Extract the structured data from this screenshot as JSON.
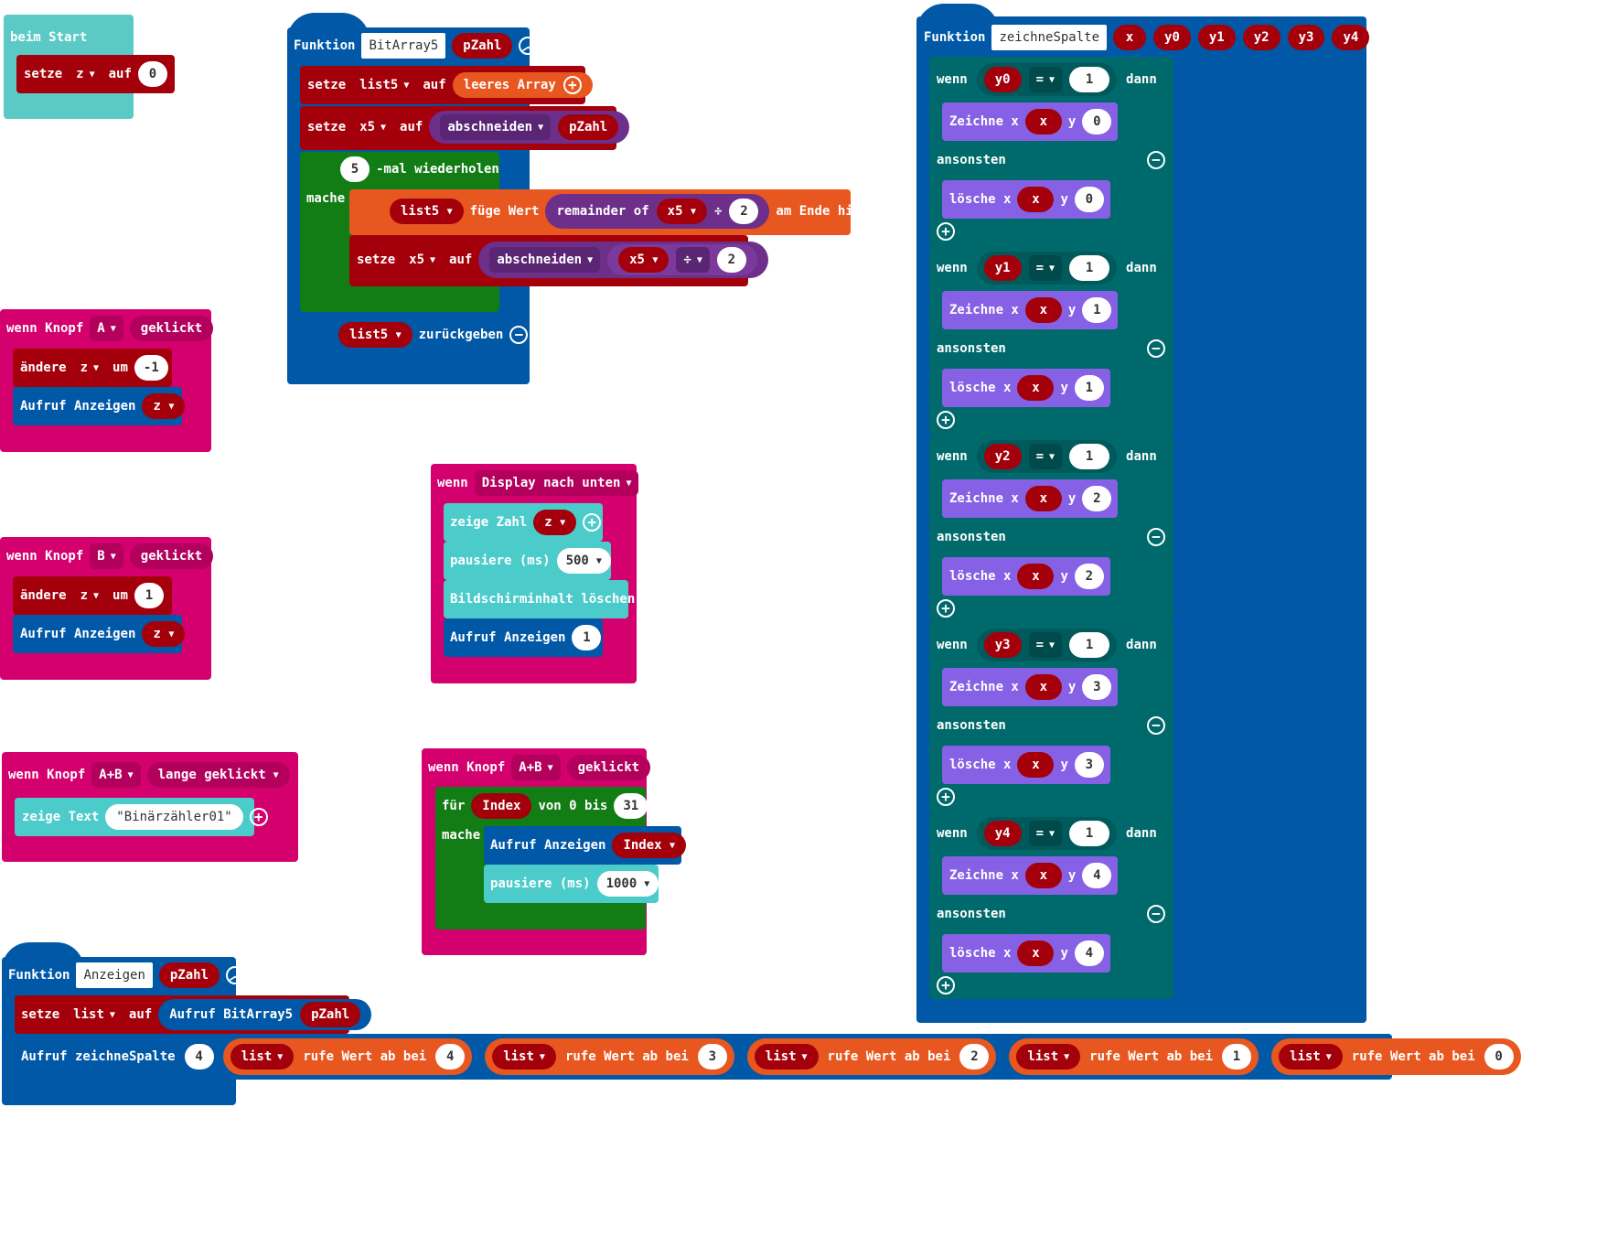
{
  "colors": {
    "event": "#d4006e",
    "start": "#5bc9c5",
    "variables": "#a4000b",
    "functions": "#0058a6",
    "loops": "#127d14",
    "arrays": "#e8571f",
    "math": "#6d2f8a",
    "logic": "#00696b",
    "led": "#8661e5",
    "basic": "#4ccbcb"
  },
  "icons": {
    "plus": "plus-circle-icon",
    "minus": "minus-circle-icon",
    "collapse": "collapse-up-icon",
    "dropdown": "dropdown-caret-icon"
  },
  "glyphs": {
    "plus": "+",
    "minus": "−",
    "up": "︿",
    "caret": "▼"
  },
  "start_block": {
    "label": "beim Start",
    "set": "setze",
    "var": "z",
    "to": "auf",
    "value": "0"
  },
  "button_a": {
    "when": "wenn Knopf",
    "button": "A",
    "action": "geklickt",
    "change": "ändere",
    "var": "z",
    "by": "um",
    "value": "-1",
    "call": "Aufruf Anzeigen",
    "arg": "z"
  },
  "button_b": {
    "when": "wenn Knopf",
    "button": "B",
    "action": "geklickt",
    "change": "ändere",
    "var": "z",
    "by": "um",
    "value": "1",
    "call": "Aufruf Anzeigen",
    "arg": "z"
  },
  "button_ab_long": {
    "when": "wenn Knopf",
    "button": "A+B",
    "action": "lange geklickt",
    "show_text": "zeige Text",
    "text": "\"Binärzähler01\""
  },
  "bitarray_func": {
    "keyword": "Funktion",
    "name": "BitArray5",
    "param": "pZahl",
    "set1": {
      "set": "setze",
      "var": "list5",
      "to": "auf",
      "value": "leeres Array"
    },
    "set2": {
      "set": "setze",
      "var": "x5",
      "to": "auf",
      "op": "abschneiden",
      "arg": "pZahl"
    },
    "repeat": {
      "count": "5",
      "label": "-mal wiederholen",
      "do": "mache"
    },
    "push": {
      "var": "list5",
      "add": "füge Wert",
      "op": "remainder of",
      "arg": "x5",
      "div": "÷",
      "divisor": "2",
      "end": "am Ende hinzu"
    },
    "set3": {
      "set": "setze",
      "var": "x5",
      "to": "auf",
      "op": "abschneiden",
      "arg": "x5",
      "div": "÷",
      "divisor": "2"
    },
    "ret": {
      "var": "list5",
      "label": "zurückgeben"
    }
  },
  "display_down": {
    "when": "wenn",
    "event": "Display nach unten",
    "show_num": "zeige Zahl",
    "var": "z",
    "pause": "pausiere (ms)",
    "pause_val": "500",
    "clear": "Bildschirminhalt löschen",
    "call": "Aufruf Anzeigen",
    "call_arg": "1"
  },
  "button_ab": {
    "when": "wenn Knopf",
    "button": "A+B",
    "action": "geklickt",
    "for": "für",
    "index": "Index",
    "from": "von 0 bis",
    "to": "31",
    "do": "mache",
    "call": "Aufruf Anzeigen",
    "call_arg": "Index",
    "pause": "pausiere (ms)",
    "pause_val": "1000"
  },
  "anzeigen_func": {
    "keyword": "Funktion",
    "name": "Anzeigen",
    "param": "pZahl",
    "set": "setze",
    "var": "list",
    "to": "auf",
    "call_bitarray": "Aufruf BitArray5",
    "call_arg": "pZahl",
    "call_zeichne": "Aufruf zeichneSpalte",
    "col_arg": "4",
    "get_label": "rufe Wert ab bei",
    "list_var": "list",
    "indices": [
      "4",
      "3",
      "2",
      "1",
      "0"
    ]
  },
  "zeichne_func": {
    "keyword": "Funktion",
    "name": "zeichneSpalte",
    "params": [
      "x",
      "y0",
      "y1",
      "y2",
      "y3",
      "y4"
    ],
    "if_label": "wenn",
    "then_label": "dann",
    "else_label": "ansonsten",
    "eq": "=",
    "compare_val": "1",
    "plot": "Zeichne x",
    "unplot": "lösche x",
    "y_label": "y",
    "x_var": "x",
    "branches": [
      {
        "var": "y0",
        "y": "0"
      },
      {
        "var": "y1",
        "y": "1"
      },
      {
        "var": "y2",
        "y": "2"
      },
      {
        "var": "y3",
        "y": "3"
      },
      {
        "var": "y4",
        "y": "4"
      }
    ]
  }
}
